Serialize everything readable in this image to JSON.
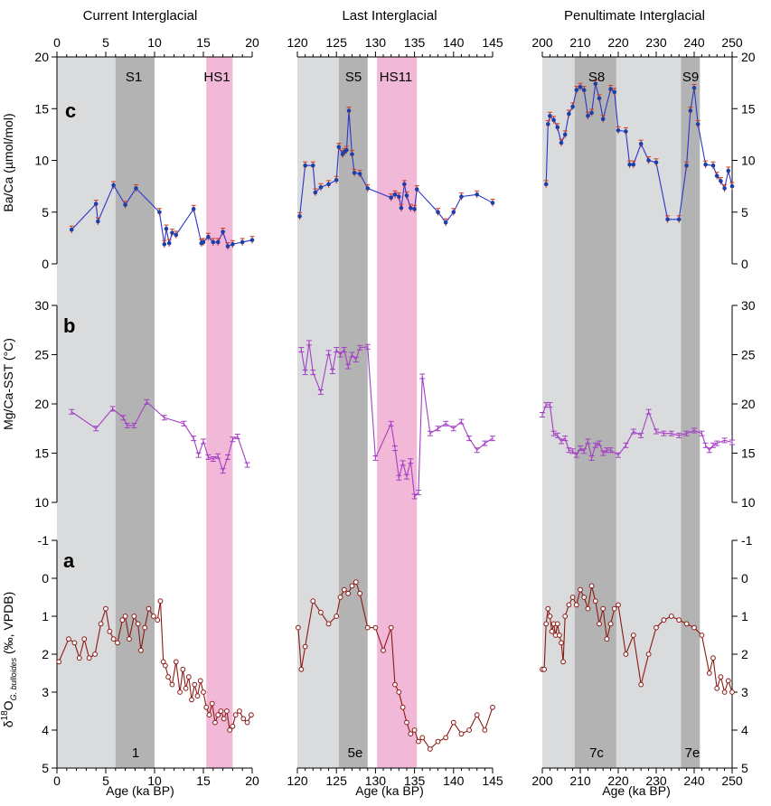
{
  "figure_type": "multi-panel paleoclimate time series",
  "colors": {
    "interglacial_shade": "#d9dbdc",
    "stage_shade": "#b3b3b3",
    "heinrich_shade": "#f2b8d8",
    "ba_line": "#2c35c8",
    "ba_point": "#1f3fa8",
    "ba_err": "#d23b1f",
    "mg_line": "#a43fc4",
    "d18o_line": "#8b1a14"
  },
  "panels": [
    {
      "title": "Current Interglacial",
      "xlabel": "Age (ka BP)",
      "xlim": [
        0,
        20
      ],
      "xticks": [
        0,
        5,
        10,
        15,
        20
      ],
      "stage_top": "S1",
      "heinrich_top": "HS1",
      "stage_bottom": "1"
    },
    {
      "title": "Last Interglacial",
      "xlabel": "Age (ka BP)",
      "xlim": [
        120,
        145
      ],
      "xticks": [
        120,
        125,
        130,
        135,
        140,
        145
      ],
      "stage_top": "S5",
      "heinrich_top": "HS11",
      "stage_bottom": "5e"
    },
    {
      "title": "Penultimate Interglacial",
      "xlabel": "Age (ka BP)",
      "xlim": [
        200,
        250
      ],
      "xticks": [
        200,
        210,
        220,
        230,
        240,
        250
      ],
      "stage_top_1": "S8",
      "stage_top_2": "S9",
      "stage_bottom_1": "7c",
      "stage_bottom_2": "7e"
    }
  ],
  "rows": [
    {
      "letter": "c",
      "ylabel": "Ba/Ca (µmol/mol)",
      "ylim": [
        0,
        20
      ],
      "yticks": [
        0,
        5,
        10,
        15,
        20
      ]
    },
    {
      "letter": "b",
      "ylabel": "Mg/Ca-SST (°C)",
      "ylim": [
        10,
        30
      ],
      "yticks": [
        10,
        15,
        20,
        25,
        30
      ]
    },
    {
      "letter": "a",
      "ylabel_prefix": "δ",
      "ylabel_sup": "18",
      "ylabel_mid": "O",
      "ylabel_sub": "G. bulloides",
      "ylabel_suffix": " (‰, VPDB)",
      "ylim": [
        -1,
        5
      ],
      "yticks": [
        -1,
        0,
        1,
        2,
        3,
        4,
        5
      ],
      "inverted": true
    }
  ],
  "chart_data": [
    {
      "type": "line",
      "title": "Current Interglacial",
      "xlabel": "Age (ka BP)",
      "xlim": [
        0,
        20
      ],
      "series": [
        {
          "name": "Ba/Ca",
          "x": [
            1.5,
            4,
            4.2,
            5.8,
            7,
            8.1,
            10.5,
            11,
            11.2,
            11.5,
            11.8,
            12.2,
            14,
            14.8,
            15,
            15.5,
            16,
            16.5,
            17,
            17.5,
            18,
            19,
            20
          ],
          "y": [
            3.3,
            5.8,
            4.1,
            7.6,
            5.7,
            7.3,
            5.0,
            1.9,
            3.4,
            2.0,
            3.0,
            2.8,
            5.3,
            2.0,
            2.1,
            2.6,
            2.1,
            2.1,
            3.1,
            1.7,
            1.9,
            2.1,
            2.3
          ]
        },
        {
          "name": "Mg/Ca-SST",
          "x": [
            1.5,
            4,
            5.7,
            6.8,
            7.2,
            7.9,
            9.2,
            11,
            13,
            14,
            14.5,
            15,
            15.5,
            16,
            16.5,
            17,
            17.5,
            18,
            18.5,
            19.5
          ],
          "y": [
            19.2,
            17.5,
            19.5,
            18.6,
            17.8,
            17.8,
            20.2,
            18.6,
            18.0,
            16.5,
            14.8,
            16.2,
            14.6,
            14.4,
            14.7,
            13.2,
            14.6,
            16.4,
            16.7,
            13.8
          ]
        },
        {
          "name": "δ18O",
          "x": [
            0.2,
            1.2,
            1.8,
            2.3,
            2.8,
            3.3,
            3.9,
            4.5,
            5.0,
            5.4,
            5.8,
            6.2,
            6.7,
            7.0,
            7.4,
            7.9,
            8.3,
            8.6,
            9.0,
            9.4,
            9.9,
            10.3,
            10.6,
            10.9,
            11.1,
            11.4,
            11.8,
            12.2,
            12.6,
            12.9,
            13.2,
            13.5,
            13.8,
            14.1,
            14.4,
            14.7,
            15.0,
            15.3,
            15.6,
            15.9,
            16.2,
            16.5,
            16.8,
            17.1,
            17.4,
            17.7,
            18.0,
            18.3,
            18.7,
            19.1,
            19.5,
            19.9
          ],
          "y": [
            2.2,
            1.6,
            1.7,
            2.1,
            1.6,
            2.1,
            2.0,
            1.2,
            0.8,
            1.4,
            1.6,
            1.7,
            1.1,
            1.0,
            1.6,
            1.0,
            1.2,
            1.9,
            1.3,
            0.8,
            1.0,
            1.1,
            0.6,
            2.2,
            2.3,
            2.6,
            2.8,
            2.2,
            3.0,
            2.4,
            2.9,
            2.6,
            3.2,
            2.8,
            3.1,
            2.7,
            3.0,
            3.4,
            3.6,
            3.3,
            3.8,
            3.6,
            3.5,
            3.7,
            3.5,
            4.0,
            3.9,
            3.6,
            3.5,
            3.7,
            3.8,
            3.6
          ]
        }
      ]
    },
    {
      "type": "line",
      "title": "Last Interglacial",
      "xlabel": "Age (ka BP)",
      "xlim": [
        120,
        145
      ],
      "series": [
        {
          "name": "Ba/Ca",
          "x": [
            120.3,
            121,
            122,
            122.3,
            123,
            124,
            125,
            125.3,
            125.8,
            126,
            126.3,
            126.6,
            127,
            127.3,
            128,
            129,
            132,
            132.5,
            133,
            133.3,
            133.7,
            134,
            134.5,
            135,
            135.3,
            138,
            139,
            140,
            141,
            143,
            145
          ],
          "y": [
            4.6,
            9.5,
            9.5,
            6.9,
            7.4,
            7.7,
            8.1,
            11.3,
            10.6,
            10.8,
            11.0,
            14.8,
            10.6,
            8.8,
            8.7,
            7.3,
            6.4,
            6.7,
            6.5,
            5.4,
            7.7,
            6.6,
            5.4,
            5.3,
            7.2,
            5.0,
            4.0,
            5.0,
            6.5,
            6.7,
            5.9
          ]
        },
        {
          "name": "Mg/Ca-SST",
          "x": [
            120.5,
            121,
            121.5,
            122,
            123,
            124,
            124.5,
            125,
            125.5,
            126,
            126.5,
            127,
            127.5,
            128,
            129,
            130,
            132,
            132.5,
            133,
            133.5,
            134,
            134.5,
            135,
            135.5,
            136,
            137,
            138,
            139,
            140,
            141,
            142,
            143,
            144,
            145
          ],
          "y": [
            25.5,
            23.2,
            26.2,
            23.2,
            21.2,
            25.2,
            23.3,
            25.5,
            25.0,
            25.5,
            23.8,
            25.0,
            24.5,
            25.7,
            25.8,
            14.5,
            18.0,
            15.5,
            12.5,
            14.0,
            12.6,
            14.2,
            10.6,
            11.0,
            22.8,
            17.0,
            17.5,
            18.0,
            17.5,
            18.2,
            16.5,
            15.3,
            16.0,
            16.5
          ]
        },
        {
          "name": "δ18O",
          "x": [
            120.1,
            120.5,
            121,
            122,
            123,
            124,
            125,
            125.5,
            126,
            126.5,
            127,
            127.5,
            128,
            129,
            130,
            131,
            132,
            132.5,
            133,
            133.5,
            134,
            134.5,
            135,
            135.5,
            136,
            137,
            138,
            139,
            140,
            141,
            142,
            143,
            144,
            145
          ],
          "y": [
            1.3,
            2.4,
            1.8,
            0.6,
            0.9,
            1.2,
            1.0,
            0.5,
            0.3,
            0.4,
            0.2,
            0.1,
            0.4,
            1.3,
            1.3,
            1.9,
            1.3,
            2.8,
            3.0,
            3.4,
            3.8,
            4.1,
            4.0,
            4.3,
            4.2,
            4.5,
            4.3,
            4.2,
            3.8,
            4.1,
            4.0,
            3.6,
            4.0,
            3.4
          ]
        }
      ]
    },
    {
      "type": "line",
      "title": "Penultimate Interglacial",
      "xlabel": "Age (ka BP)",
      "xlim": [
        200,
        250
      ],
      "series": [
        {
          "name": "Ba/Ca",
          "x": [
            201,
            201.5,
            202,
            203,
            204,
            205,
            206,
            207,
            208,
            209,
            210,
            211,
            212,
            213,
            214,
            215,
            216,
            218,
            219,
            220,
            222,
            223,
            224,
            226,
            228,
            230,
            233,
            236,
            238,
            239,
            240,
            241,
            243,
            245,
            246,
            247,
            248,
            249,
            250
          ],
          "y": [
            7.7,
            13.5,
            14.3,
            13.9,
            13.2,
            11.7,
            12.5,
            14.5,
            15.2,
            16.8,
            17.1,
            16.8,
            14.3,
            14.6,
            17.4,
            16.0,
            14.0,
            16.9,
            16.6,
            12.9,
            12.8,
            9.6,
            9.6,
            11.6,
            10.0,
            9.8,
            4.3,
            4.3,
            9.5,
            14.8,
            17.0,
            13.5,
            9.6,
            9.5,
            8.5,
            8.0,
            7.3,
            9.0,
            7.5
          ]
        },
        {
          "name": "Mg/Ca-SST",
          "x": [
            200,
            201,
            202,
            203,
            204,
            205,
            206,
            207,
            208,
            209,
            210,
            211,
            212,
            213,
            214,
            215,
            216,
            217,
            218,
            220,
            222,
            224,
            226,
            228,
            230,
            232,
            234,
            236,
            238,
            240,
            242,
            243,
            244,
            245,
            246,
            248,
            250
          ],
          "y": [
            18.9,
            19.9,
            19.9,
            17.0,
            16.8,
            16.2,
            16.5,
            15.3,
            15.2,
            14.8,
            15.5,
            15.2,
            16.2,
            14.5,
            15.8,
            16.0,
            15.0,
            15.3,
            15.3,
            14.8,
            15.8,
            17.2,
            16.8,
            19.2,
            17.2,
            17.0,
            17.0,
            16.8,
            17.0,
            17.3,
            17.0,
            15.8,
            15.3,
            15.8,
            16.0,
            16.3,
            16.1
          ]
        },
        {
          "name": "δ18O",
          "x": [
            200,
            200.5,
            201,
            201.5,
            202,
            202.5,
            203,
            203.5,
            204,
            204.5,
            205,
            205.5,
            206,
            207,
            208,
            209,
            210,
            211,
            212,
            213,
            214,
            215,
            216,
            217,
            218,
            219,
            220,
            222,
            224,
            226,
            228,
            230,
            232,
            234,
            236,
            238,
            240,
            242,
            244,
            245,
            246,
            247,
            248,
            249,
            250
          ],
          "y": [
            2.4,
            2.4,
            1.2,
            0.8,
            1.0,
            1.4,
            1.2,
            1.5,
            1.2,
            1.5,
            1.7,
            2.2,
            1.0,
            0.7,
            0.5,
            0.7,
            0.3,
            0.5,
            0.8,
            0.2,
            0.6,
            1.2,
            0.8,
            1.6,
            1.2,
            0.8,
            0.7,
            2.0,
            1.5,
            2.8,
            2.0,
            1.3,
            1.1,
            1.0,
            1.1,
            1.2,
            1.3,
            1.5,
            2.5,
            2.1,
            2.9,
            2.6,
            3.0,
            2.7,
            3.0
          ]
        }
      ]
    }
  ]
}
